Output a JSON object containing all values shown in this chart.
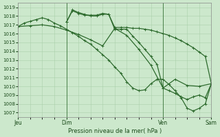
{
  "background_color": "#cce8cc",
  "grid_color": "#aacfaa",
  "line_color": "#2d6a2d",
  "title": "Pression niveau de la mer( hPa )",
  "ylim": [
    1006.5,
    1019.5
  ],
  "yticks": [
    1007,
    1008,
    1009,
    1010,
    1011,
    1012,
    1013,
    1014,
    1015,
    1016,
    1017,
    1018,
    1019
  ],
  "xlabel_labels": [
    "Jeu",
    "Dim",
    "Ven",
    "Sam"
  ],
  "xlabel_tick_positions": [
    0,
    24,
    72,
    96
  ],
  "vline_positions": [
    24,
    72,
    96
  ],
  "series": [
    {
      "x": [
        0,
        3,
        6,
        9,
        12,
        15,
        18,
        21,
        24,
        27,
        30,
        33,
        36,
        39,
        42,
        45,
        48,
        51,
        54,
        57,
        60,
        63,
        66,
        69,
        72,
        75,
        78,
        81,
        84,
        87,
        90,
        93,
        96
      ],
      "y": [
        1016.8,
        1017.2,
        1017.4,
        1017.6,
        1017.8,
        1017.6,
        1017.2,
        1016.9,
        1016.5,
        1016.1,
        1015.7,
        1015.2,
        1014.8,
        1014.2,
        1013.6,
        1013.0,
        1012.2,
        1011.5,
        1010.5,
        1009.8,
        1009.5,
        1009.6,
        1010.3,
        1010.8,
        1010.8,
        1010.2,
        1009.5,
        1008.7,
        1007.5,
        1007.2,
        1007.5,
        1008.0,
        1010.3
      ]
    },
    {
      "x": [
        0,
        6,
        12,
        18,
        24,
        30,
        36,
        42,
        48,
        54,
        60,
        66,
        72,
        78,
        84,
        90,
        96
      ],
      "y": [
        1016.8,
        1016.9,
        1017.0,
        1016.8,
        1016.4,
        1015.9,
        1015.3,
        1014.6,
        1016.6,
        1015.8,
        1014.2,
        1012.4,
        1009.8,
        1010.8,
        1010.1,
        1010.0,
        1010.3
      ]
    },
    {
      "x": [
        24,
        27,
        30,
        33,
        36,
        39,
        42,
        45,
        48,
        51,
        54,
        57,
        60,
        63,
        66,
        69,
        72,
        75,
        78,
        81,
        84,
        87,
        90,
        93,
        96
      ],
      "y": [
        1017.3,
        1018.6,
        1018.3,
        1018.1,
        1018.1,
        1018.1,
        1018.3,
        1018.2,
        1016.7,
        1016.7,
        1016.7,
        1016.6,
        1016.6,
        1016.5,
        1016.4,
        1016.2,
        1016.0,
        1015.8,
        1015.5,
        1015.2,
        1014.8,
        1014.4,
        1013.9,
        1013.4,
        1010.3
      ]
    },
    {
      "x": [
        24,
        27,
        30,
        33,
        36,
        39,
        42,
        45,
        48,
        51,
        54,
        57,
        60,
        63,
        66,
        69,
        72,
        75,
        78,
        81,
        84,
        87,
        90,
        93,
        96
      ],
      "y": [
        1017.3,
        1018.7,
        1018.4,
        1018.2,
        1018.0,
        1018.0,
        1018.2,
        1018.2,
        1016.5,
        1016.5,
        1016.5,
        1015.7,
        1015.0,
        1014.2,
        1013.4,
        1012.5,
        1009.8,
        1009.5,
        1009.2,
        1008.8,
        1008.5,
        1008.8,
        1009.0,
        1008.7,
        1010.3
      ]
    }
  ],
  "marker": "+",
  "markersize": 3.5,
  "linewidth": 0.9,
  "fontsize_yticks": 5,
  "fontsize_xticks": 5.5,
  "fontsize_title": 6
}
